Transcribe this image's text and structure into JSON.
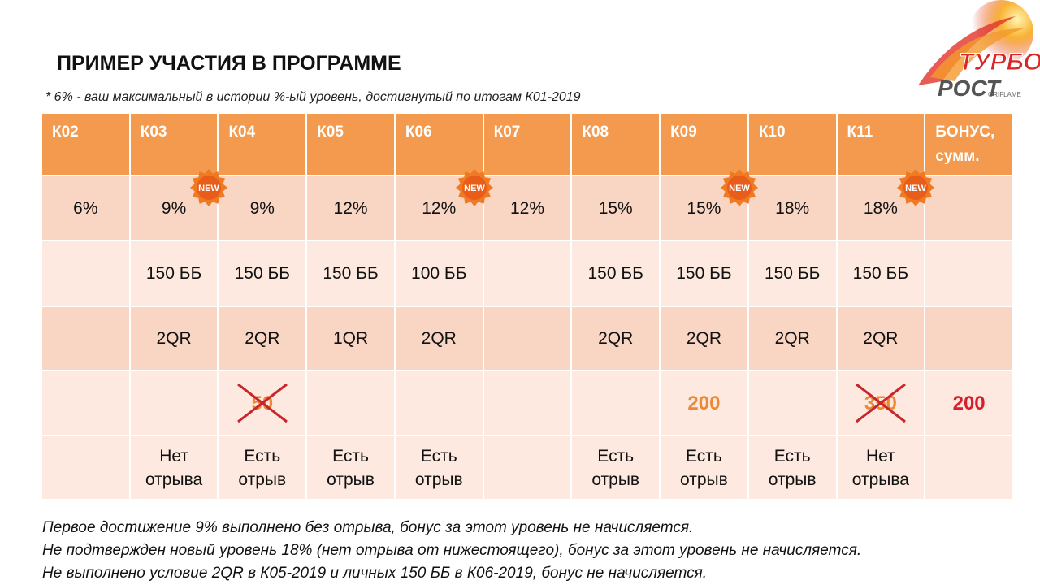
{
  "header": {
    "title": "ПРИМЕР УЧАСТИЯ В ПРОГРАММЕ",
    "note": "* 6% - ваш максимальный в истории %-ый уровень, достигнутый по итогам К01-2019"
  },
  "logo": {
    "line1": "ТУРБО",
    "line2": "РОСТ",
    "brand": "ORIFLAME"
  },
  "badge": {
    "label": "NEW",
    "columns": [
      2,
      5,
      8,
      10
    ]
  },
  "table": {
    "columns": [
      "К02",
      "К03",
      "К04",
      "К05",
      "К06",
      "К07",
      "К08",
      "К09",
      "К10",
      "К11",
      [
        "БОНУС,",
        "сумм."
      ]
    ],
    "rows": [
      [
        "6%",
        "9%",
        "9%",
        "12%",
        "12%",
        "12%",
        "15%",
        "15%",
        "18%",
        "18%",
        null
      ],
      [
        null,
        "150 ББ",
        "150 ББ",
        "150 ББ",
        "100 ББ",
        null,
        "150 ББ",
        "150 ББ",
        "150 ББ",
        "150 ББ",
        null
      ],
      [
        null,
        "2QR",
        "2QR",
        "1QR",
        "2QR",
        null,
        "2QR",
        "2QR",
        "2QR",
        "2QR",
        null
      ],
      [
        null,
        null,
        {
          "text": "50",
          "style": "crossed"
        },
        null,
        null,
        null,
        null,
        {
          "text": "200",
          "style": "highlight"
        },
        null,
        {
          "text": "350",
          "style": "crossed"
        },
        {
          "text": "200",
          "style": "bonus"
        }
      ],
      [
        null,
        [
          "Нет",
          "отрыва"
        ],
        [
          "Есть",
          "отрыв"
        ],
        [
          "Есть",
          "отрыв"
        ],
        [
          "Есть",
          "отрыв"
        ],
        null,
        [
          "Есть",
          "отрыв"
        ],
        [
          "Есть",
          "отрыв"
        ],
        [
          "Есть",
          "отрыв"
        ],
        [
          "Нет",
          "отрыва"
        ],
        null
      ]
    ]
  },
  "footer": [
    "Первое достижение 9% выполнено без отрыва, бонус за этот уровень не начисляется.",
    "Не подтвержден новый уровень 18% (нет отрыва от нижестоящего), бонус за этот уровень не начисляется.",
    "Не выполнено условие 2QR в К05-2019 и личных 150 ББ в К06-2019, бонус не начисляется."
  ]
}
